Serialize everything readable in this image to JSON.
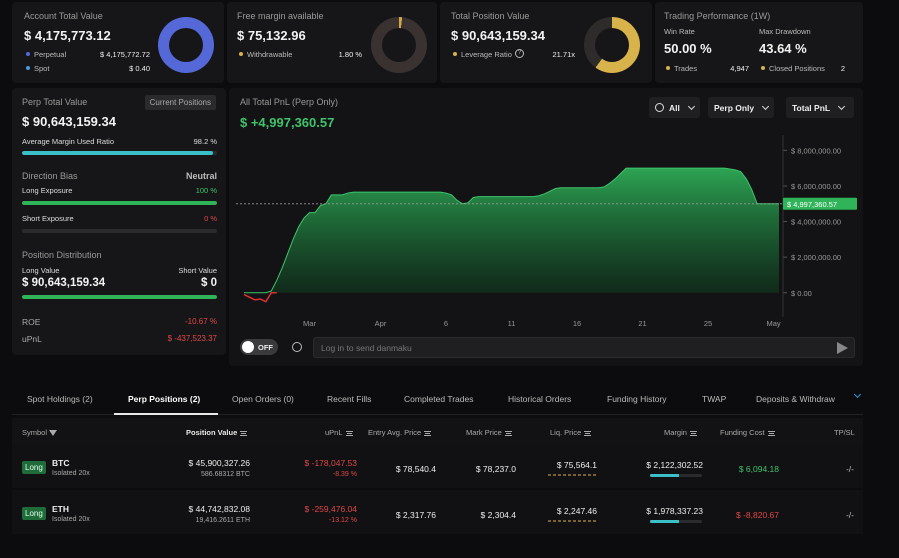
{
  "account": {
    "title": "Account Total Value",
    "value": "$ 4,175,773.12",
    "perp_label": "Perpetual",
    "perp_value": "$ 4,175,772.72",
    "spot_label": "Spot",
    "spot_value": "$ 0.40",
    "perp_color": "#5468d8",
    "spot_color": "#4a9ad8"
  },
  "margin": {
    "title": "Free margin available",
    "value": "$ 75,132.96",
    "withdraw_label": "Withdrawable",
    "withdraw_value": "1.80 %"
  },
  "position": {
    "title": "Total Position Value",
    "value": "$ 90,643,159.34",
    "leverage_label": "Leverage Ratio",
    "leverage_value": "21.71x",
    "ring_color": "#d8b24a"
  },
  "performance": {
    "title": "Trading Performance (1W)",
    "win_label": "Win Rate",
    "win_value": "50.00 %",
    "dd_label": "Max Drawdown",
    "dd_value": "43.64 %",
    "trades_label": "Trades",
    "trades_value": "4,947",
    "closed_label": "Closed Positions",
    "closed_value": "2"
  },
  "perp": {
    "title": "Perp Total Value",
    "current_btn": "Current Positions",
    "value": "$ 90,643,159.34",
    "margin_label": "Average Margin Used Ratio",
    "margin_value": "98.2 %",
    "margin_ratio": 0.982,
    "bias_title": "Direction Bias",
    "bias_value": "Neutral",
    "long_label": "Long Exposure",
    "long_value": "100 %",
    "long_ratio": 1.0,
    "short_label": "Short Exposure",
    "short_value": "0 %",
    "short_ratio": 0,
    "dist_title": "Position Distribution",
    "dist_long_label": "Long Value",
    "dist_short_label": "Short Value",
    "dist_long_value": "$ 90,643,159.34",
    "dist_short_value": "$ 0",
    "dist_long_ratio": 1.0,
    "roe_label": "ROE",
    "roe_value": "-10.67 %",
    "upnl_label": "uPnL",
    "upnl_value": "$ -437,523.37"
  },
  "chart_panel": {
    "title": "All Total PnL (Perp Only)",
    "value": "$ +4,997,360.57",
    "filter_all": "All",
    "filter_perp": "Perp Only",
    "filter_total": "Total PnL",
    "toggle": "OFF",
    "danmaku_placeholder": "Log in to send danmaku"
  },
  "chart_data": {
    "type": "area",
    "x": [
      0,
      1,
      2,
      3,
      4,
      5,
      6,
      7,
      8,
      9,
      10,
      11,
      12,
      13,
      14,
      15,
      16,
      17,
      18,
      19,
      20,
      21,
      22,
      23,
      24,
      25,
      26,
      27,
      28,
      29,
      30,
      31,
      32,
      33,
      34,
      35,
      36,
      37,
      38,
      39,
      40,
      41,
      42,
      43,
      44,
      45,
      46,
      47,
      48,
      49,
      50,
      51,
      52,
      53,
      54,
      55,
      56,
      57,
      58,
      59,
      60,
      61,
      62,
      63,
      64,
      65,
      66,
      67,
      68,
      69,
      70,
      71,
      72,
      73,
      74,
      75,
      76,
      77,
      78,
      79,
      80,
      81,
      82,
      83,
      84,
      85,
      86,
      87,
      88,
      89,
      90,
      91,
      92,
      93,
      94,
      95,
      96,
      97,
      98
    ],
    "y": [
      -100000,
      -250000,
      -400000,
      -350000,
      -500000,
      100000,
      700000,
      1400000,
      2200000,
      3000000,
      3700000,
      4200000,
      4500000,
      4500000,
      4900000,
      5000000,
      5500000,
      5500000,
      5500000,
      5600000,
      5650000,
      5650000,
      5650000,
      5650000,
      5650000,
      5650000,
      5650000,
      5650000,
      5650000,
      5650000,
      5650000,
      5650000,
      5650000,
      5650000,
      5650000,
      5650000,
      5650000,
      5600000,
      5500000,
      5200000,
      5000000,
      5050000,
      5350000,
      5400000,
      5400000,
      5400000,
      5400000,
      5400000,
      5400000,
      5400000,
      5400000,
      5400000,
      5400000,
      5400000,
      5450000,
      5550000,
      5700000,
      5850000,
      5900000,
      5900000,
      5900000,
      5900000,
      5900000,
      5900000,
      5900000,
      5900000,
      5950000,
      6150000,
      6400000,
      6700000,
      7000000,
      7000000,
      7000000,
      7000000,
      7000000,
      7000000,
      7000000,
      7000000,
      7000000,
      7000000,
      7000000,
      7000000,
      7000000,
      7000000,
      7000000,
      7000000,
      7000000,
      7000000,
      7000000,
      6950000,
      6900000,
      6800000,
      6400000,
      5800000,
      5000000,
      5000000,
      5000000,
      5000000,
      5000000
    ],
    "x_ticks": [
      {
        "x": 12,
        "label": "Mar"
      },
      {
        "x": 25,
        "label": "Apr"
      },
      {
        "x": 37,
        "label": "6"
      },
      {
        "x": 49,
        "label": "11"
      },
      {
        "x": 61,
        "label": "16"
      },
      {
        "x": 73,
        "label": "21"
      },
      {
        "x": 85,
        "label": "25"
      },
      {
        "x": 97,
        "label": "May"
      }
    ],
    "y_ticks": [
      {
        "v": 0,
        "label": "$ 0.00"
      },
      {
        "v": 2000000,
        "label": "$ 2,000,000.00"
      },
      {
        "v": 4000000,
        "label": "$ 4,000,000.00"
      },
      {
        "v": 6000000,
        "label": "$ 6,000,000.00"
      },
      {
        "v": 8000000,
        "label": "$ 8,000,000.00"
      }
    ],
    "ylim": [
      -800000,
      8300000
    ],
    "current": 4997360.57,
    "current_label": "$ 4,997,360.57",
    "line_color": "#3ec46d",
    "neg_color": "#e03030"
  },
  "tabs": [
    "Spot Holdings (2)",
    "Perp Positions (2)",
    "Open Orders (0)",
    "Recent Fills",
    "Completed Trades",
    "Historical Orders",
    "Funding History",
    "TWAP",
    "Deposits & Withdraw"
  ],
  "table": {
    "headers": {
      "symbol": "Symbol",
      "position": "Position Value",
      "upnl": "uPnL",
      "entry": "Entry Avg. Price",
      "mark": "Mark Price",
      "liq": "Liq. Price",
      "margin": "Margin",
      "funding": "Funding Cost",
      "tpsl": "TP/SL"
    },
    "rows": [
      {
        "side": "Long",
        "coin": "BTC",
        "mode": "Isolated 20x",
        "value": "$ 45,900,327.26",
        "size": "586.68312 BTC",
        "upnl": "$ -178,047.53",
        "upnl_pct": "-8.39 %",
        "entry": "$ 78,540.4",
        "mark": "$ 78,237.0",
        "liq": "$ 75,564.1",
        "margin": "$ 2,122,302.52",
        "funding": "$ 6,094.18",
        "tpsl": "-/-"
      },
      {
        "side": "Long",
        "coin": "ETH",
        "mode": "Isolated 20x",
        "value": "$ 44,742,832.08",
        "size": "19,416.2611 ETH",
        "upnl": "$ -259,476.04",
        "upnl_pct": "-13.12 %",
        "entry": "$ 2,317.76",
        "mark": "$ 2,304.4",
        "liq": "$ 2,247.46",
        "margin": "$ 1,978,337.23",
        "funding": "$ -8,820.67",
        "tpsl": "-/-"
      }
    ]
  }
}
